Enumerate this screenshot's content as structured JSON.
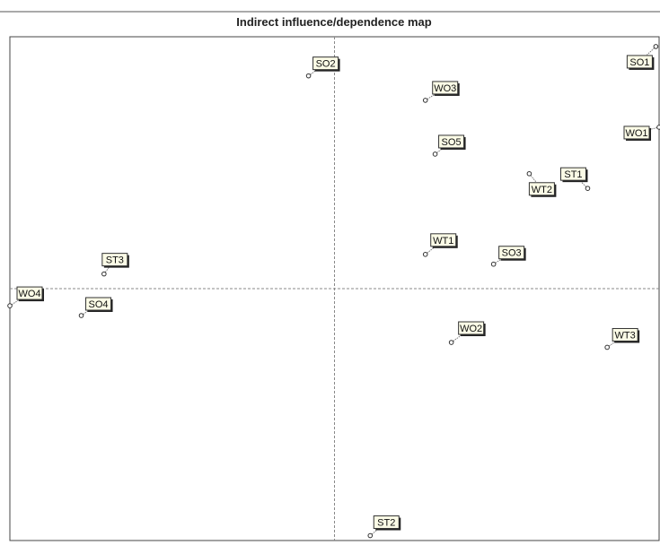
{
  "chart_data": {
    "type": "scatter",
    "title": "Indirect influence/dependence map",
    "xlabel": "",
    "ylabel": "",
    "grid": false,
    "quadrant_lines": true,
    "points": [
      {
        "label": "SO1",
        "x": 0.99,
        "y": 0.99
      },
      {
        "label": "SO2",
        "x": -0.08,
        "y": 0.87
      },
      {
        "label": "WO3",
        "x": 0.28,
        "y": 0.77
      },
      {
        "label": "WO1",
        "x": 1.0,
        "y": 0.66
      },
      {
        "label": "SO5",
        "x": 0.31,
        "y": 0.55
      },
      {
        "label": "WT2",
        "x": 0.6,
        "y": 0.47
      },
      {
        "label": "ST1",
        "x": 0.78,
        "y": 0.41
      },
      {
        "label": "WT1",
        "x": 0.28,
        "y": 0.14
      },
      {
        "label": "SO3",
        "x": 0.49,
        "y": 0.1
      },
      {
        "label": "ST3",
        "x": -0.71,
        "y": 0.06
      },
      {
        "label": "WO4",
        "x": -1.0,
        "y": -0.07
      },
      {
        "label": "SO4",
        "x": -0.78,
        "y": -0.11
      },
      {
        "label": "WO2",
        "x": 0.36,
        "y": -0.22
      },
      {
        "label": "WT3",
        "x": 0.84,
        "y": -0.24
      },
      {
        "label": "ST2",
        "x": 0.11,
        "y": -1.01
      }
    ],
    "xlim": [
      -1.0,
      1.0
    ],
    "ylim": [
      -1.03,
      1.03
    ]
  }
}
